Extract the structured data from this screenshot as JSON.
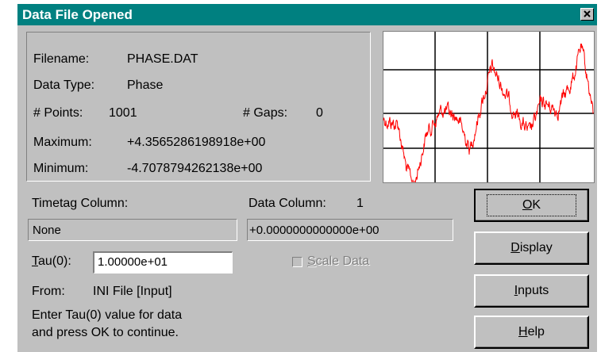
{
  "window": {
    "title": "Data File Opened"
  },
  "info": {
    "filename_label": "Filename:",
    "filename": "PHASE.DAT",
    "data_type_label": "Data Type:",
    "data_type": "Phase",
    "points_label": "# Points:",
    "points": 1001,
    "gaps_label": "# Gaps:",
    "gaps": 0,
    "maximum_label": "Maximum:",
    "maximum": "+4.3565286198918e+00",
    "minimum_label": "Minimum:",
    "minimum": "-4.7078794262138e+00"
  },
  "form": {
    "timetag_label": "Timetag Column:",
    "timetag_value": "None",
    "data_column_label": "Data Column:",
    "data_column": 1,
    "data_value": "+0.0000000000000e+00",
    "tau_label": "Tau(0):",
    "tau_value": "1.00000e+01",
    "scale_data": "Scale Data",
    "from_label": "From:",
    "from_value": "INI File [Input]",
    "message_1": "Enter Tau(0) value for data",
    "message_2": "and press OK to continue."
  },
  "buttons": [
    "OK",
    "Display",
    "Inputs",
    "Help"
  ]
}
